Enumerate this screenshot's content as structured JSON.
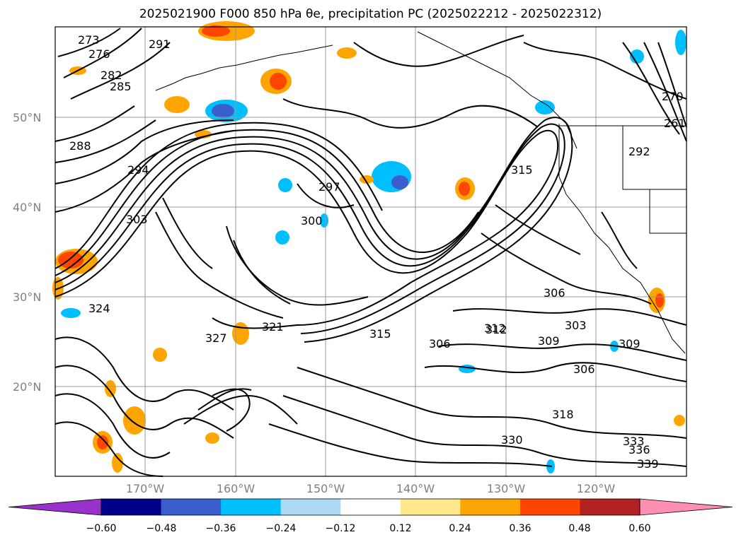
{
  "title": "2025021900 F000 850 hPa θe, precipitation PC (2025022212 - 2025022312)",
  "map": {
    "lat_ticks": [
      "50°N",
      "40°N",
      "30°N",
      "20°N"
    ],
    "lon_ticks": [
      "170°W",
      "160°W",
      "150°W",
      "140°W",
      "130°W",
      "120°W"
    ],
    "contour_labels": [
      "273",
      "276",
      "282",
      "285",
      "288",
      "291",
      "294",
      "297",
      "300",
      "303",
      "306",
      "309",
      "312",
      "315",
      "318",
      "321",
      "324",
      "327",
      "330",
      "333",
      "336",
      "339",
      "270",
      "261",
      "292",
      "315",
      "306",
      "303",
      "309",
      "312",
      "306"
    ]
  },
  "colorbar": {
    "ticks": [
      "−0.60",
      "−0.48",
      "−0.36",
      "−0.24",
      "−0.12",
      "0.12",
      "0.24",
      "0.36",
      "0.48",
      "0.60"
    ],
    "colors": [
      "#9932cc",
      "#00008b",
      "#3a5fcd",
      "#00bfff",
      "#add8f6",
      "#ffffff",
      "#ffe88c",
      "#ffa500",
      "#ff4500",
      "#b22222",
      "#ff8fb0"
    ]
  }
}
